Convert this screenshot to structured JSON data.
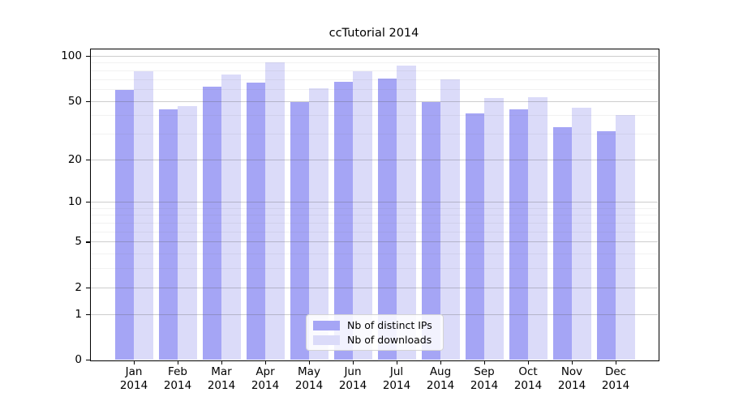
{
  "chart_data": {
    "type": "bar",
    "title": "ccTutorial 2014",
    "categories": [
      "Jan 2014",
      "Feb 2014",
      "Mar 2014",
      "Apr 2014",
      "May 2014",
      "Jun 2014",
      "Jul 2014",
      "Aug 2014",
      "Sep 2014",
      "Oct 2014",
      "Nov 2014",
      "Dec 2014"
    ],
    "series": [
      {
        "name": "Nb of distinct IPs",
        "color": "#a5a5f5",
        "values": [
          59,
          44,
          62,
          66,
          49,
          67,
          71,
          49,
          41,
          44,
          33,
          31
        ]
      },
      {
        "name": "Nb of downloads",
        "color": "#dbdbf9",
        "values": [
          79,
          46,
          75,
          91,
          61,
          79,
          86,
          70,
          52,
          53,
          45,
          40
        ]
      }
    ],
    "xlabel": "",
    "ylabel": "",
    "yscale": "log1p",
    "ylim": [
      0,
      112
    ],
    "yticks": [
      0,
      1,
      2,
      5,
      10,
      20,
      50,
      100
    ],
    "minor_gridlines": [
      3,
      4,
      6,
      7,
      8,
      9,
      30,
      40,
      60,
      70,
      80,
      90
    ],
    "grid": true,
    "legend_position": "lower center",
    "colors": {
      "bar_dark": "#a5a5f5",
      "bar_light": "#dbdbf9",
      "axis": "#000000",
      "grid_major": "#cfcfcf",
      "grid_minor": "#ececec",
      "background": "#ffffff"
    }
  }
}
